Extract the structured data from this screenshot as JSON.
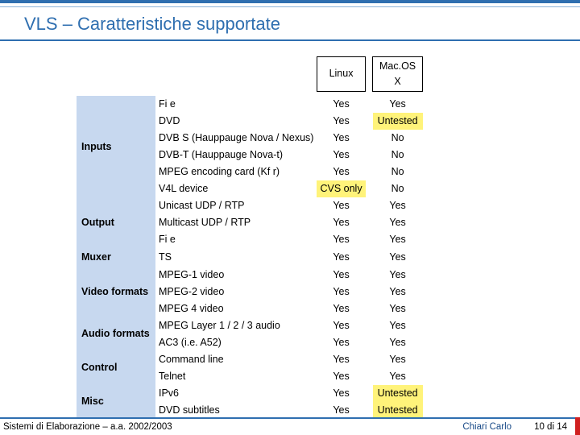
{
  "title": "VLS –  Caratteristiche supportate",
  "columns": [
    "Linux",
    "Mac.OS X"
  ],
  "groups": [
    {
      "label": "Inputs",
      "rowspan": 6,
      "rows": [
        {
          "feat": "Fi e",
          "c1": "Yes",
          "c2": "Yes",
          "hl1": false,
          "hl2": false
        },
        {
          "feat": "DVD",
          "c1": "Yes",
          "c2": "Untested",
          "hl1": false,
          "hl2": true
        },
        {
          "feat": "DVB S (Hauppauge Nova / Nexus)",
          "c1": "Yes",
          "c2": "No",
          "hl1": false,
          "hl2": false
        },
        {
          "feat": "DVB-T (Hauppauge Nova-t)",
          "c1": "Yes",
          "c2": "No",
          "hl1": false,
          "hl2": false
        },
        {
          "feat": "MPEG encoding card (Kf r)",
          "c1": "Yes",
          "c2": "No",
          "hl1": false,
          "hl2": false
        },
        {
          "feat": "V4L device",
          "c1": "CVS only",
          "c2": "No",
          "hl1": true,
          "hl2": false
        }
      ]
    },
    {
      "label": "Output",
      "rowspan": 3,
      "rows": [
        {
          "feat": "Unicast UDP / RTP",
          "c1": "Yes",
          "c2": "Yes",
          "hl1": false,
          "hl2": false
        },
        {
          "feat": "Multicast UDP / RTP",
          "c1": "Yes",
          "c2": "Yes",
          "hl1": false,
          "hl2": false
        },
        {
          "feat": "Fi e",
          "c1": "Yes",
          "c2": "Yes",
          "hl1": false,
          "hl2": false
        }
      ]
    },
    {
      "label": "Muxer",
      "rowspan": 1,
      "rows": [
        {
          "feat": "TS",
          "c1": "Yes",
          "c2": "Yes",
          "hl1": false,
          "hl2": false
        }
      ]
    },
    {
      "label": "Video formats",
      "rowspan": 3,
      "rows": [
        {
          "feat": "MPEG-1 video",
          "c1": "Yes",
          "c2": "Yes",
          "hl1": false,
          "hl2": false
        },
        {
          "feat": "MPEG-2 video",
          "c1": "Yes",
          "c2": "Yes",
          "hl1": false,
          "hl2": false
        },
        {
          "feat": "MPEG 4 video",
          "c1": "Yes",
          "c2": "Yes",
          "hl1": false,
          "hl2": false
        }
      ]
    },
    {
      "label": "Audio formats",
      "rowspan": 2,
      "rows": [
        {
          "feat": "MPEG Layer 1 / 2 / 3 audio",
          "c1": "Yes",
          "c2": "Yes",
          "hl1": false,
          "hl2": false
        },
        {
          "feat": "AC3 (i.e. A52)",
          "c1": "Yes",
          "c2": "Yes",
          "hl1": false,
          "hl2": false
        }
      ]
    },
    {
      "label": "Control",
      "rowspan": 2,
      "rows": [
        {
          "feat": "Command line",
          "c1": "Yes",
          "c2": "Yes",
          "hl1": false,
          "hl2": false
        },
        {
          "feat": "Telnet",
          "c1": "Yes",
          "c2": "Yes",
          "hl1": false,
          "hl2": false
        }
      ]
    },
    {
      "label": "Misc",
      "rowspan": 2,
      "rows": [
        {
          "feat": "IPv6",
          "c1": "Yes",
          "c2": "Untested",
          "hl1": false,
          "hl2": true
        },
        {
          "feat": "DVD subtitles",
          "c1": "Yes",
          "c2": "Untested",
          "hl1": false,
          "hl2": true
        }
      ]
    }
  ],
  "footer": {
    "left": "Sistemi di Elaborazione – a.a. 2002/2003",
    "mid": "Chiari Carlo",
    "right": "10 di 14"
  },
  "colors": {
    "accent": "#2f6fb0",
    "cat_bg": "#c7d8ef",
    "highlight": "#fff37a",
    "red": "#d02020"
  }
}
